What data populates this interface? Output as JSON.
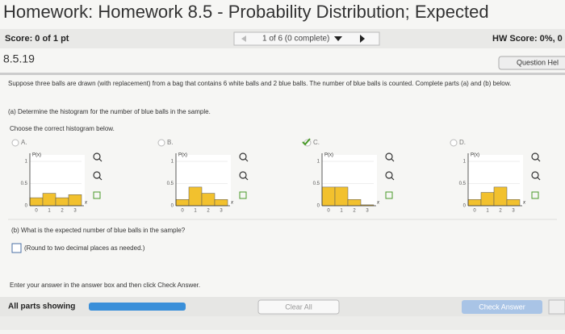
{
  "header": {
    "title": "Homework: Homework 8.5 - Probability Distribution; Expected",
    "score": "Score: 0 of 1 pt",
    "progress": "1 of 6 (0 complete)",
    "hw_score": "HW Score: 0%, 0"
  },
  "question": {
    "id": "8.5.19",
    "help": "Question Hel",
    "text": "Suppose three balls are drawn (with replacement) from a bag that contains 6 white balls and 2 blue balls. The number of blue balls is counted. Complete parts (a) and (b) below.",
    "part_a": "(a) Determine the histogram for the number of blue balls in the sample.",
    "choose": "Choose the correct histogram below.",
    "histogram": {
      "y_label": "P(x)",
      "x_label": "x",
      "ylim": [
        0,
        1
      ],
      "yticks": [
        0,
        0.5,
        1
      ],
      "categories": [
        "0",
        "1",
        "2",
        "3"
      ],
      "color": "#f2c12e"
    },
    "options": [
      {
        "label": "A.",
        "values": [
          0.18,
          0.28,
          0.18,
          0.25
        ]
      },
      {
        "label": "B.",
        "values": [
          0.14,
          0.42,
          0.28,
          0.14
        ]
      },
      {
        "label": "C.",
        "values": [
          0.42,
          0.42,
          0.14,
          0.02
        ]
      },
      {
        "label": "D.",
        "values": [
          0.14,
          0.3,
          0.42,
          0.14
        ]
      }
    ],
    "part_b": "(b) What is the expected number of blue balls in the sample?",
    "round_note": "(Round to two decimal places as needed.)"
  },
  "footer": {
    "instruction": "Enter your answer in the answer box and then click Check Answer.",
    "parts": "All parts showing",
    "clear": "Clear All",
    "check": "Check Answer"
  }
}
